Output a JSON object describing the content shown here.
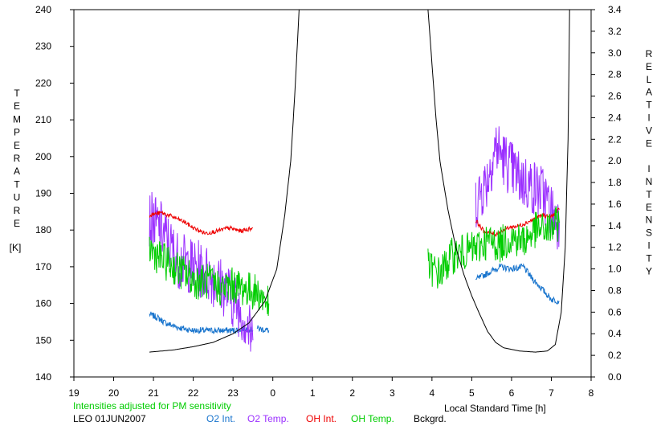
{
  "chart_data": {
    "type": "line",
    "left_axis_letters": [
      "T",
      "E",
      "M",
      "P",
      "E",
      "R",
      "A",
      "T",
      "U",
      "R",
      "E"
    ],
    "left_axis_unit": "[K]",
    "right_axis_letters": [
      "R",
      "E",
      "L",
      "A",
      "T",
      "I",
      "V",
      "E",
      "",
      "I",
      "N",
      "T",
      "E",
      "N",
      "S",
      "I",
      "T",
      "Y"
    ],
    "xlabel": "Local Standard Time [h]",
    "x_ticks": [
      "19",
      "20",
      "21",
      "22",
      "23",
      "0",
      "1",
      "2",
      "3",
      "4",
      "5",
      "6",
      "7",
      "8"
    ],
    "x_hours": [
      19,
      20,
      21,
      22,
      23,
      24,
      25,
      26,
      27,
      28,
      29,
      30,
      31,
      32
    ],
    "xlim": [
      19,
      32
    ],
    "y_left_ticks": [
      140,
      150,
      160,
      170,
      180,
      190,
      200,
      210,
      220,
      230,
      240
    ],
    "y_left_lim": [
      140,
      240
    ],
    "y_right_ticks": [
      "0.0",
      "0.2",
      "0.4",
      "0.6",
      "0.8",
      "1.0",
      "1.2",
      "1.4",
      "1.6",
      "1.8",
      "2.0",
      "2.2",
      "2.4",
      "2.6",
      "2.8",
      "3.0",
      "3.2",
      "3.4"
    ],
    "y_right_lim": [
      0,
      3.4
    ],
    "note": "Intensities adjusted for PM sensitivity",
    "station": "LEO 01JUN2007",
    "series": [
      {
        "name": "O2 Int.",
        "color": "#1874CD",
        "axis": "right",
        "noise": 0.03,
        "segments": [
          [
            [
              20.9,
              0.58
            ],
            [
              21.1,
              0.55
            ],
            [
              21.3,
              0.5
            ],
            [
              21.6,
              0.46
            ],
            [
              22.0,
              0.43
            ],
            [
              22.5,
              0.43
            ],
            [
              23.0,
              0.43
            ],
            [
              23.3,
              0.45
            ],
            [
              23.5,
              0.43
            ]
          ],
          [
            [
              23.6,
              0.45
            ],
            [
              23.9,
              0.43
            ]
          ],
          [
            [
              29.1,
              0.9
            ],
            [
              29.5,
              0.98
            ],
            [
              29.7,
              1.02
            ],
            [
              30.0,
              1.0
            ],
            [
              30.3,
              1.02
            ],
            [
              30.5,
              0.92
            ],
            [
              30.8,
              0.8
            ],
            [
              31.0,
              0.72
            ],
            [
              31.2,
              0.7
            ]
          ]
        ]
      },
      {
        "name": "O2 Temp.",
        "color": "#9B30FF",
        "axis": "left",
        "noise": 8,
        "segments": [
          [
            [
              20.9,
              183
            ],
            [
              21.2,
              180
            ],
            [
              21.6,
              172
            ],
            [
              22.0,
              170
            ],
            [
              22.4,
              168
            ],
            [
              22.8,
              164
            ],
            [
              23.2,
              158
            ],
            [
              23.5,
              150
            ]
          ],
          [
            [
              29.1,
              188
            ],
            [
              29.4,
              194
            ],
            [
              29.6,
              203
            ],
            [
              29.9,
              198
            ],
            [
              30.2,
              194
            ],
            [
              30.5,
              192
            ],
            [
              30.8,
              190
            ],
            [
              31.0,
              185
            ],
            [
              31.2,
              182
            ]
          ]
        ]
      },
      {
        "name": "OH Int.",
        "color": "#EE0000",
        "axis": "right",
        "noise": 0.02,
        "segments": [
          [
            [
              20.9,
              1.5
            ],
            [
              21.2,
              1.52
            ],
            [
              21.5,
              1.48
            ],
            [
              21.8,
              1.43
            ],
            [
              22.0,
              1.38
            ],
            [
              22.3,
              1.33
            ],
            [
              22.6,
              1.35
            ],
            [
              22.9,
              1.38
            ],
            [
              23.2,
              1.35
            ],
            [
              23.5,
              1.38
            ]
          ],
          [
            [
              29.1,
              1.45
            ],
            [
              29.3,
              1.35
            ],
            [
              29.6,
              1.32
            ],
            [
              29.9,
              1.38
            ],
            [
              30.2,
              1.4
            ],
            [
              30.5,
              1.45
            ],
            [
              30.8,
              1.5
            ],
            [
              31.0,
              1.48
            ],
            [
              31.2,
              1.55
            ]
          ]
        ]
      },
      {
        "name": "OH Temp.",
        "color": "#00CD00",
        "axis": "left",
        "noise": 5,
        "segments": [
          [
            [
              20.9,
              175
            ],
            [
              21.2,
              172
            ],
            [
              21.5,
              170
            ],
            [
              21.8,
              168
            ],
            [
              22.1,
              166
            ],
            [
              22.4,
              166
            ],
            [
              22.7,
              164
            ],
            [
              23.0,
              165
            ],
            [
              23.3,
              164
            ],
            [
              23.6,
              163
            ],
            [
              23.9,
              160
            ]
          ],
          [
            [
              27.9,
              170
            ],
            [
              28.2,
              168
            ],
            [
              28.5,
              173
            ],
            [
              28.8,
              174
            ],
            [
              29.1,
              175
            ],
            [
              29.4,
              177
            ],
            [
              29.7,
              176
            ],
            [
              30.0,
              178
            ],
            [
              30.3,
              177
            ],
            [
              30.6,
              180
            ],
            [
              30.9,
              180
            ],
            [
              31.2,
              182
            ]
          ]
        ]
      },
      {
        "name": "Bckgrd.",
        "color": "#000000",
        "axis": "right",
        "noise": 0,
        "segments": [
          [
            [
              20.9,
              0.23
            ],
            [
              21.5,
              0.25
            ],
            [
              22.0,
              0.28
            ],
            [
              22.5,
              0.32
            ],
            [
              23.0,
              0.4
            ],
            [
              23.4,
              0.5
            ],
            [
              23.8,
              0.7
            ],
            [
              24.1,
              1.0
            ],
            [
              24.3,
              1.5
            ],
            [
              24.45,
              2.0
            ],
            [
              24.55,
              2.6
            ],
            [
              24.62,
              3.1
            ],
            [
              24.66,
              3.4
            ]
          ],
          [
            [
              27.9,
              3.4
            ],
            [
              28.0,
              2.9
            ],
            [
              28.1,
              2.4
            ],
            [
              28.2,
              2.0
            ],
            [
              28.4,
              1.55
            ],
            [
              28.6,
              1.2
            ],
            [
              28.8,
              0.95
            ],
            [
              29.0,
              0.75
            ],
            [
              29.2,
              0.58
            ],
            [
              29.4,
              0.42
            ],
            [
              29.6,
              0.32
            ],
            [
              29.8,
              0.27
            ],
            [
              30.2,
              0.24
            ],
            [
              30.6,
              0.23
            ],
            [
              30.9,
              0.24
            ],
            [
              31.1,
              0.3
            ],
            [
              31.25,
              0.6
            ],
            [
              31.35,
              1.2
            ],
            [
              31.42,
              2.2
            ],
            [
              31.46,
              3.4
            ]
          ]
        ]
      }
    ]
  }
}
